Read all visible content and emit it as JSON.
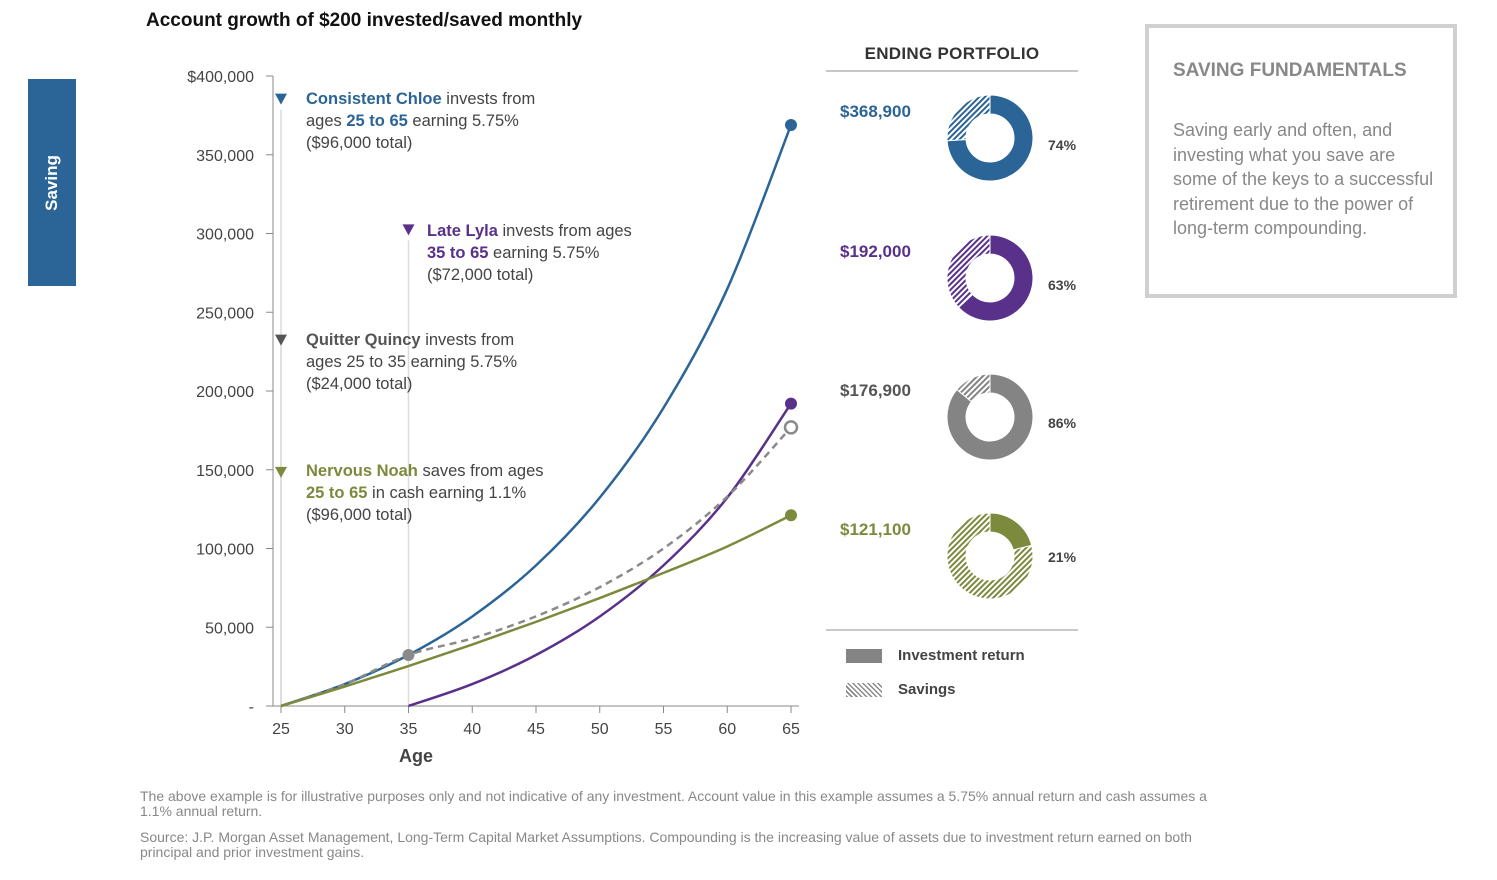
{
  "side_tab": "Saving",
  "title": "Account growth of $200 invested/saved monthly",
  "chart_data": {
    "type": "line",
    "title": "Account growth of $200 invested/saved monthly",
    "xlabel": "Age",
    "ylabel": "",
    "xlim": [
      25,
      65
    ],
    "ylim": [
      0,
      400000
    ],
    "x_ticks": [
      25,
      30,
      35,
      40,
      45,
      50,
      55,
      60,
      65
    ],
    "y_ticks": [
      0,
      50000,
      100000,
      150000,
      200000,
      250000,
      300000,
      350000,
      400000
    ],
    "y_tick_labels": [
      "-",
      "50,000",
      "100,000",
      "150,000",
      "200,000",
      "250,000",
      "300,000",
      "350,000",
      "$400,000"
    ],
    "series": [
      {
        "name": "Consistent Chloe",
        "color": "#2b6496",
        "style": "solid",
        "x": [
          25,
          30,
          35,
          40,
          45,
          50,
          55,
          60,
          65
        ],
        "y": [
          0,
          13920,
          32380,
          56850,
          89290,
          132300,
          189300,
          264800,
          368900
        ]
      },
      {
        "name": "Late Lyla",
        "color": "#59308a",
        "style": "solid",
        "x": [
          35,
          40,
          45,
          50,
          55,
          60,
          65
        ],
        "y": [
          0,
          13920,
          32380,
          56850,
          89290,
          132300,
          192000
        ]
      },
      {
        "name": "Quitter Quincy",
        "color": "#8a8a8a",
        "style": "dashed",
        "x": [
          25,
          30,
          35,
          40,
          45,
          50,
          55,
          60,
          65
        ],
        "y": [
          0,
          13920,
          32380,
          42930,
          56920,
          75460,
          100000,
          132900,
          176900
        ]
      },
      {
        "name": "Nervous Noah",
        "color": "#7b8a3c",
        "style": "solid",
        "x": [
          25,
          30,
          35,
          40,
          45,
          50,
          55,
          60,
          65
        ],
        "y": [
          0,
          12340,
          25320,
          39010,
          53410,
          68560,
          84510,
          101300,
          121100
        ]
      }
    ],
    "markers": [
      {
        "x": 65,
        "y": 368900,
        "color": "#2b6496",
        "fill": "solid"
      },
      {
        "x": 65,
        "y": 192000,
        "color": "#59308a",
        "fill": "solid"
      },
      {
        "x": 65,
        "y": 176900,
        "color": "#8a8a8a",
        "fill": "hollow"
      },
      {
        "x": 65,
        "y": 121100,
        "color": "#7b8a3c",
        "fill": "solid"
      },
      {
        "x": 35,
        "y": 32380,
        "color": "#8a8a8a",
        "fill": "solid"
      }
    ],
    "annotations": [
      {
        "marker_y": 385000,
        "marker_x": 25,
        "color": "#2b6496",
        "lead_to_y": 0
      },
      {
        "marker_y": 302000,
        "marker_x": 35,
        "color": "#59308a",
        "lead_to_y": 0
      },
      {
        "marker_y": 232000,
        "marker_x": 25,
        "color": "#555555",
        "lead_to_y": 0
      },
      {
        "marker_y": 148000,
        "marker_x": 25,
        "color": "#7b8a3c",
        "lead_to_y": 0
      }
    ],
    "legend_placement": "inline annotations"
  },
  "annotations": {
    "chloe": {
      "name": "Consistent Chloe",
      "t1": " invests from",
      "t2": "ages ",
      "ages": "25 to 65",
      "t3": " earning 5.75%",
      "total": "($96,000 total)"
    },
    "lyla": {
      "name": "Late Lyla",
      "t1": " invests from ages",
      "ages": "35 to 65",
      "t3": " earning 5.75%",
      "total": "($72,000 total)"
    },
    "quincy": {
      "name": "Quitter Quincy",
      "t1": " invests from",
      "t2": "ages 25 to 35 earning 5.75%",
      "total": "($24,000 total)"
    },
    "noah": {
      "name": "Nervous Noah",
      "t1": " saves from ages",
      "ages": "25 to 65",
      "t3": " in cash earning 1.1%",
      "total": "($96,000 total)"
    }
  },
  "portfolio": {
    "title": "ENDING PORTFOLIO",
    "items": [
      {
        "value": "$368,900",
        "pct_label": "74%",
        "return_fraction": 0.74,
        "color": "#2b6496"
      },
      {
        "value": "$192,000",
        "pct_label": "63%",
        "return_fraction": 0.63,
        "color": "#59308a"
      },
      {
        "value": "$176,900",
        "pct_label": "86%",
        "return_fraction": 0.86,
        "color": "#848484"
      },
      {
        "value": "$121,100",
        "pct_label": "21%",
        "return_fraction": 0.21,
        "color": "#7b8a3c"
      }
    ],
    "legend": {
      "investment_return": "Investment return",
      "savings": "Savings"
    }
  },
  "box": {
    "title": "SAVING FUNDAMENTALS",
    "body": "Saving early and often, and investing what you save are some of the keys to a successful retirement due to the power of long-term compounding."
  },
  "footnotes": {
    "line1": "The above example is for illustrative purposes only and not indicative of any investment. Account value in this example assumes a 5.75% annual return and cash assumes a 1.1% annual return.",
    "line2": "Source: J.P. Morgan Asset Management, Long-Term Capital Market Assumptions. Compounding is the increasing value of assets due to investment return earned on both principal and prior investment gains."
  }
}
